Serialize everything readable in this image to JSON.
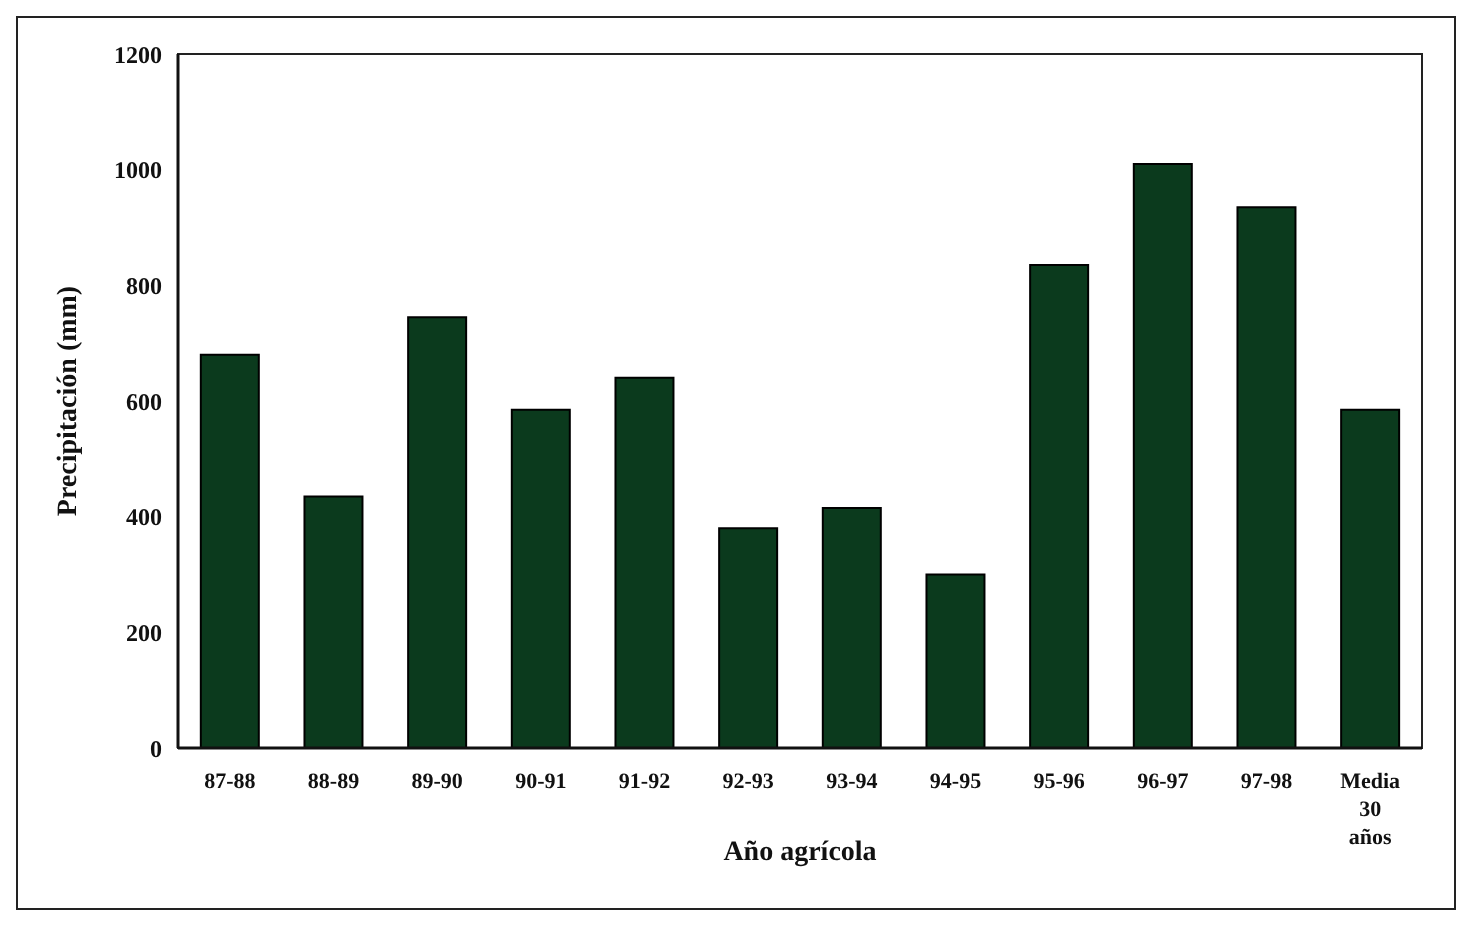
{
  "chart_data": {
    "type": "bar",
    "xlabel": "Año agrícola",
    "ylabel": "Precipitación (mm)",
    "categories": [
      "87-88",
      "88-89",
      "89-90",
      "90-91",
      "91-92",
      "92-93",
      "93-94",
      "94-95",
      "95-96",
      "96-97",
      "97-98",
      "Media 30 años"
    ],
    "values": [
      680,
      435,
      745,
      585,
      640,
      380,
      415,
      300,
      835,
      1010,
      935,
      585
    ],
    "color": "#0b3a1d",
    "ylim": [
      0,
      1200
    ],
    "yticks": [
      0,
      200,
      400,
      600,
      800,
      1000,
      1200
    ]
  }
}
